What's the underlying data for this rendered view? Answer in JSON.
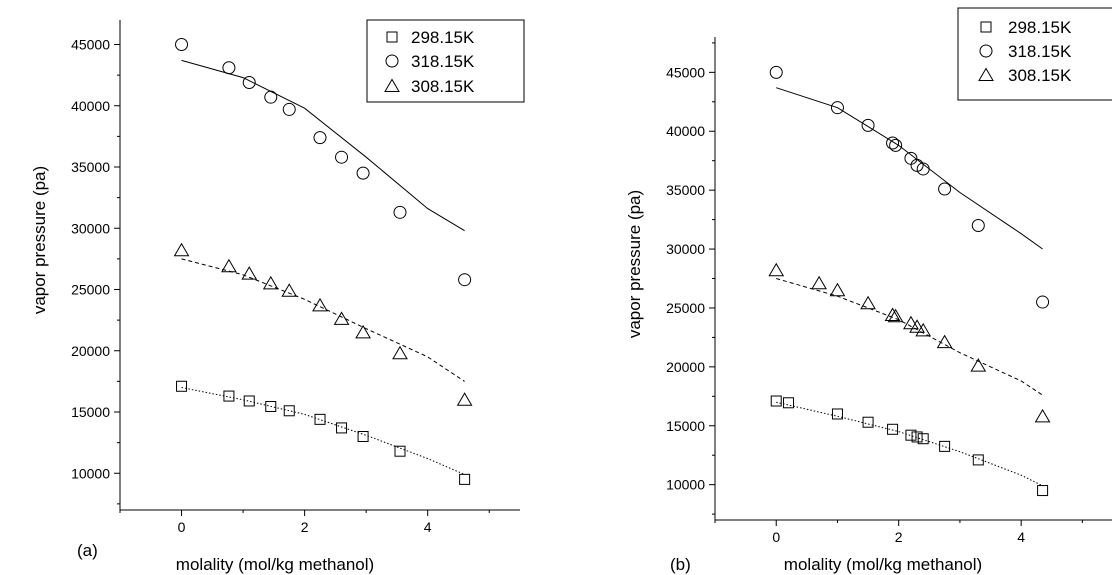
{
  "chart_data": [
    {
      "type": "scatter",
      "panel_label": "(a)",
      "xlabel": "molality (mol/kg methanol)",
      "ylabel": "vapor pressure (pa)",
      "xlim": [
        -1,
        5.5
      ],
      "ylim": [
        7000,
        47000
      ],
      "x_ticks": [
        0,
        2,
        4
      ],
      "y_ticks": [
        10000,
        15000,
        20000,
        25000,
        30000,
        35000,
        40000,
        45000
      ],
      "legend_position": "top-right",
      "grid": false,
      "series": [
        {
          "name": "298.15K",
          "marker": "square",
          "points": [
            [
              0,
              17100
            ],
            [
              0.77,
              16300
            ],
            [
              1.1,
              15900
            ],
            [
              1.45,
              15450
            ],
            [
              1.75,
              15100
            ],
            [
              2.25,
              14400
            ],
            [
              2.6,
              13700
            ],
            [
              2.95,
              13000
            ],
            [
              3.55,
              11800
            ],
            [
              4.6,
              9500
            ]
          ],
          "fit": {
            "style": "dotted",
            "points": [
              [
                0,
                17000
              ],
              [
                1,
                16000
              ],
              [
                2,
                14800
              ],
              [
                3,
                13100
              ],
              [
                4,
                11200
              ],
              [
                4.6,
                9900
              ]
            ]
          }
        },
        {
          "name": "318.15K",
          "marker": "circle",
          "points": [
            [
              0,
              45000
            ],
            [
              0.77,
              43100
            ],
            [
              1.1,
              41900
            ],
            [
              1.45,
              40700
            ],
            [
              1.75,
              39700
            ],
            [
              2.25,
              37400
            ],
            [
              2.6,
              35800
            ],
            [
              2.95,
              34500
            ],
            [
              3.55,
              31300
            ],
            [
              4.6,
              25800
            ]
          ],
          "fit": {
            "style": "solid",
            "points": [
              [
                0,
                43700
              ],
              [
                1,
                42300
              ],
              [
                2,
                39800
              ],
              [
                3,
                35800
              ],
              [
                4,
                31600
              ],
              [
                4.6,
                29800
              ]
            ]
          }
        },
        {
          "name": "308.15K",
          "marker": "triangle",
          "points": [
            [
              0,
              28200
            ],
            [
              0.77,
              26900
            ],
            [
              1.1,
              26300
            ],
            [
              1.45,
              25500
            ],
            [
              1.75,
              24900
            ],
            [
              2.25,
              23700
            ],
            [
              2.6,
              22600
            ],
            [
              2.95,
              21500
            ],
            [
              3.55,
              19800
            ],
            [
              4.6,
              16000
            ]
          ],
          "fit": {
            "style": "dashed",
            "points": [
              [
                0,
                27500
              ],
              [
                1,
                26200
              ],
              [
                2,
                24200
              ],
              [
                3,
                21800
              ],
              [
                4,
                19500
              ],
              [
                4.6,
                17500
              ]
            ]
          }
        }
      ]
    },
    {
      "type": "scatter",
      "panel_label": "(b)",
      "xlabel": "molality (mol/kg methanol)",
      "ylabel": "vapor pressure (pa)",
      "xlim": [
        -1,
        5.5
      ],
      "ylim": [
        7000,
        48000
      ],
      "x_ticks": [
        0,
        2,
        4
      ],
      "y_ticks": [
        10000,
        15000,
        20000,
        25000,
        30000,
        35000,
        40000,
        45000
      ],
      "legend_position": "top-right",
      "grid": false,
      "series": [
        {
          "name": "298.15K",
          "marker": "square",
          "points": [
            [
              0,
              17100
            ],
            [
              0.2,
              16950
            ],
            [
              1.0,
              16000
            ],
            [
              1.5,
              15300
            ],
            [
              1.9,
              14700
            ],
            [
              2.2,
              14200
            ],
            [
              2.3,
              14050
            ],
            [
              2.4,
              13900
            ],
            [
              2.75,
              13250
            ],
            [
              3.3,
              12100
            ],
            [
              4.35,
              9500
            ]
          ],
          "fit": {
            "style": "dotted",
            "points": [
              [
                0,
                17000
              ],
              [
                1,
                15800
              ],
              [
                2,
                14500
              ],
              [
                3,
                12800
              ],
              [
                4,
                10800
              ],
              [
                4.35,
                9900
              ]
            ]
          }
        },
        {
          "name": "318.15K",
          "marker": "circle",
          "points": [
            [
              0,
              45000
            ],
            [
              1.0,
              42000
            ],
            [
              1.5,
              40500
            ],
            [
              1.9,
              39000
            ],
            [
              1.95,
              38800
            ],
            [
              2.2,
              37700
            ],
            [
              2.3,
              37100
            ],
            [
              2.4,
              36800
            ],
            [
              2.75,
              35100
            ],
            [
              3.3,
              32000
            ],
            [
              4.35,
              25500
            ]
          ],
          "fit": {
            "style": "solid",
            "points": [
              [
                0,
                43700
              ],
              [
                1,
                42000
              ],
              [
                2,
                38800
              ],
              [
                3,
                34800
              ],
              [
                4,
                31300
              ],
              [
                4.35,
                30000
              ]
            ]
          }
        },
        {
          "name": "308.15K",
          "marker": "triangle",
          "points": [
            [
              0,
              28200
            ],
            [
              0.7,
              27100
            ],
            [
              1.0,
              26500
            ],
            [
              1.5,
              25400
            ],
            [
              1.9,
              24400
            ],
            [
              1.95,
              24300
            ],
            [
              2.2,
              23700
            ],
            [
              2.3,
              23400
            ],
            [
              2.4,
              23100
            ],
            [
              2.75,
              22100
            ],
            [
              3.3,
              20100
            ],
            [
              4.35,
              15800
            ]
          ],
          "fit": {
            "style": "dashed",
            "points": [
              [
                0,
                27500
              ],
              [
                1,
                26000
              ],
              [
                2,
                24000
              ],
              [
                3,
                21200
              ],
              [
                4,
                18800
              ],
              [
                4.35,
                17600
              ]
            ]
          }
        }
      ]
    }
  ]
}
